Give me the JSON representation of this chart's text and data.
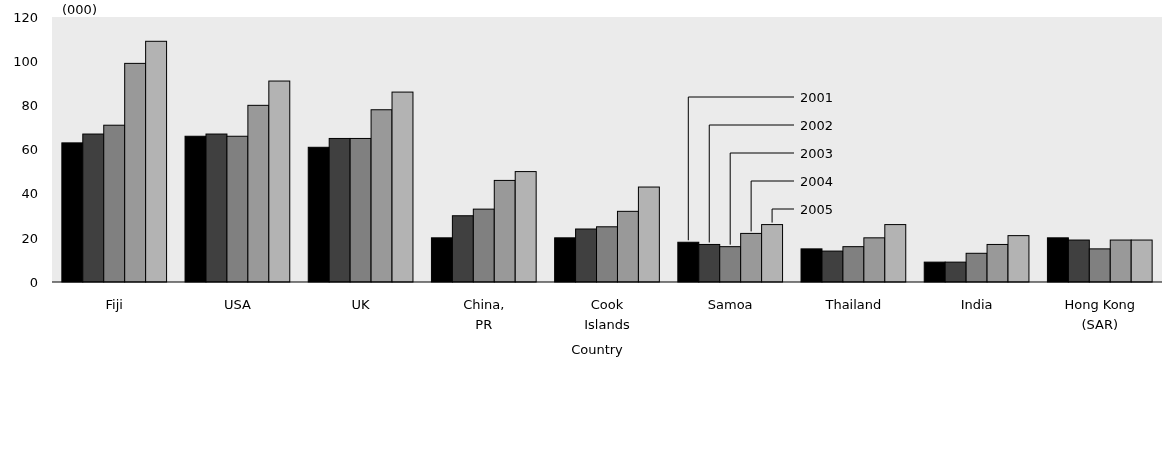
{
  "chart_data": {
    "type": "bar",
    "ylabel": "(000)",
    "xlabel": "Country",
    "categories": [
      "Fiji",
      "USA",
      "UK",
      "China,\nPR",
      "Cook\nIslands",
      "Samoa",
      "Thailand",
      "India",
      "Hong Kong\n(SAR)"
    ],
    "series": [
      {
        "name": "2001",
        "color": "#000000",
        "values": [
          63,
          66,
          61,
          20,
          20,
          18,
          15,
          9,
          20
        ]
      },
      {
        "name": "2002",
        "color": "#404040",
        "values": [
          67,
          67,
          65,
          30,
          24,
          17,
          14,
          9,
          19
        ]
      },
      {
        "name": "2003",
        "color": "#808080",
        "values": [
          71,
          66,
          65,
          33,
          25,
          16,
          16,
          13,
          15
        ]
      },
      {
        "name": "2004",
        "color": "#999999",
        "values": [
          99,
          80,
          78,
          46,
          32,
          22,
          20,
          17,
          19
        ]
      },
      {
        "name": "2005",
        "color": "#b3b3b3",
        "values": [
          109,
          91,
          86,
          50,
          43,
          26,
          26,
          21,
          19
        ]
      }
    ],
    "ylim": [
      0,
      120
    ],
    "yticks": [
      0,
      20,
      40,
      60,
      80,
      100,
      120
    ],
    "grid": false,
    "legend": "right"
  }
}
